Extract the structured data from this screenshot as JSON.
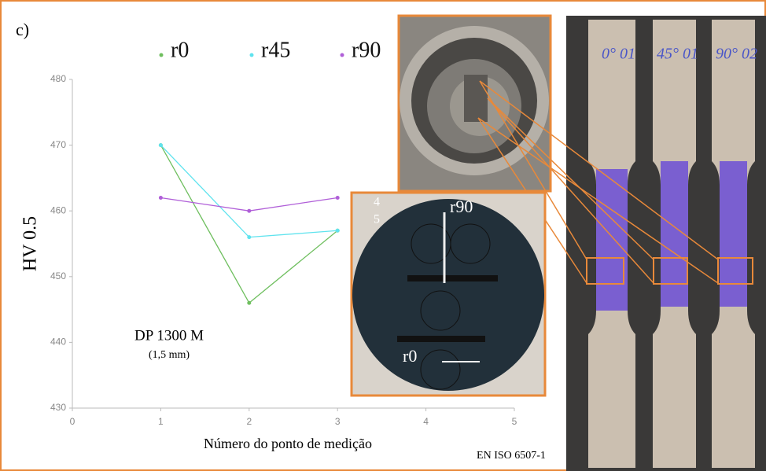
{
  "chart_data": {
    "type": "line",
    "panel_label": "c)",
    "x": [
      1,
      2,
      3
    ],
    "series": [
      {
        "name": "r0",
        "color": "#6fbf5f",
        "values": [
          470,
          446,
          457
        ]
      },
      {
        "name": "r45",
        "color": "#5fe3ee",
        "values": [
          470,
          456,
          457
        ]
      },
      {
        "name": "r90",
        "color": "#b05fd8",
        "values": [
          462,
          460,
          462
        ]
      }
    ],
    "xlim": [
      0,
      5
    ],
    "xticks": [
      0,
      1,
      2,
      3,
      4,
      5
    ],
    "ylim": [
      430,
      480
    ],
    "yticks": [
      430,
      440,
      450,
      460,
      470,
      480
    ],
    "xlabel": "Número do ponto de medição",
    "ylabel": "HV 0.5",
    "annotations": [
      "DP 1300 M",
      "(1,5 mm)",
      "EN ISO 6507-1"
    ],
    "grid": false,
    "legend": "top",
    "photo_labels": [
      "4",
      "5",
      "r90",
      "r0",
      "0° 01",
      "45° 01",
      "90° 02"
    ]
  }
}
